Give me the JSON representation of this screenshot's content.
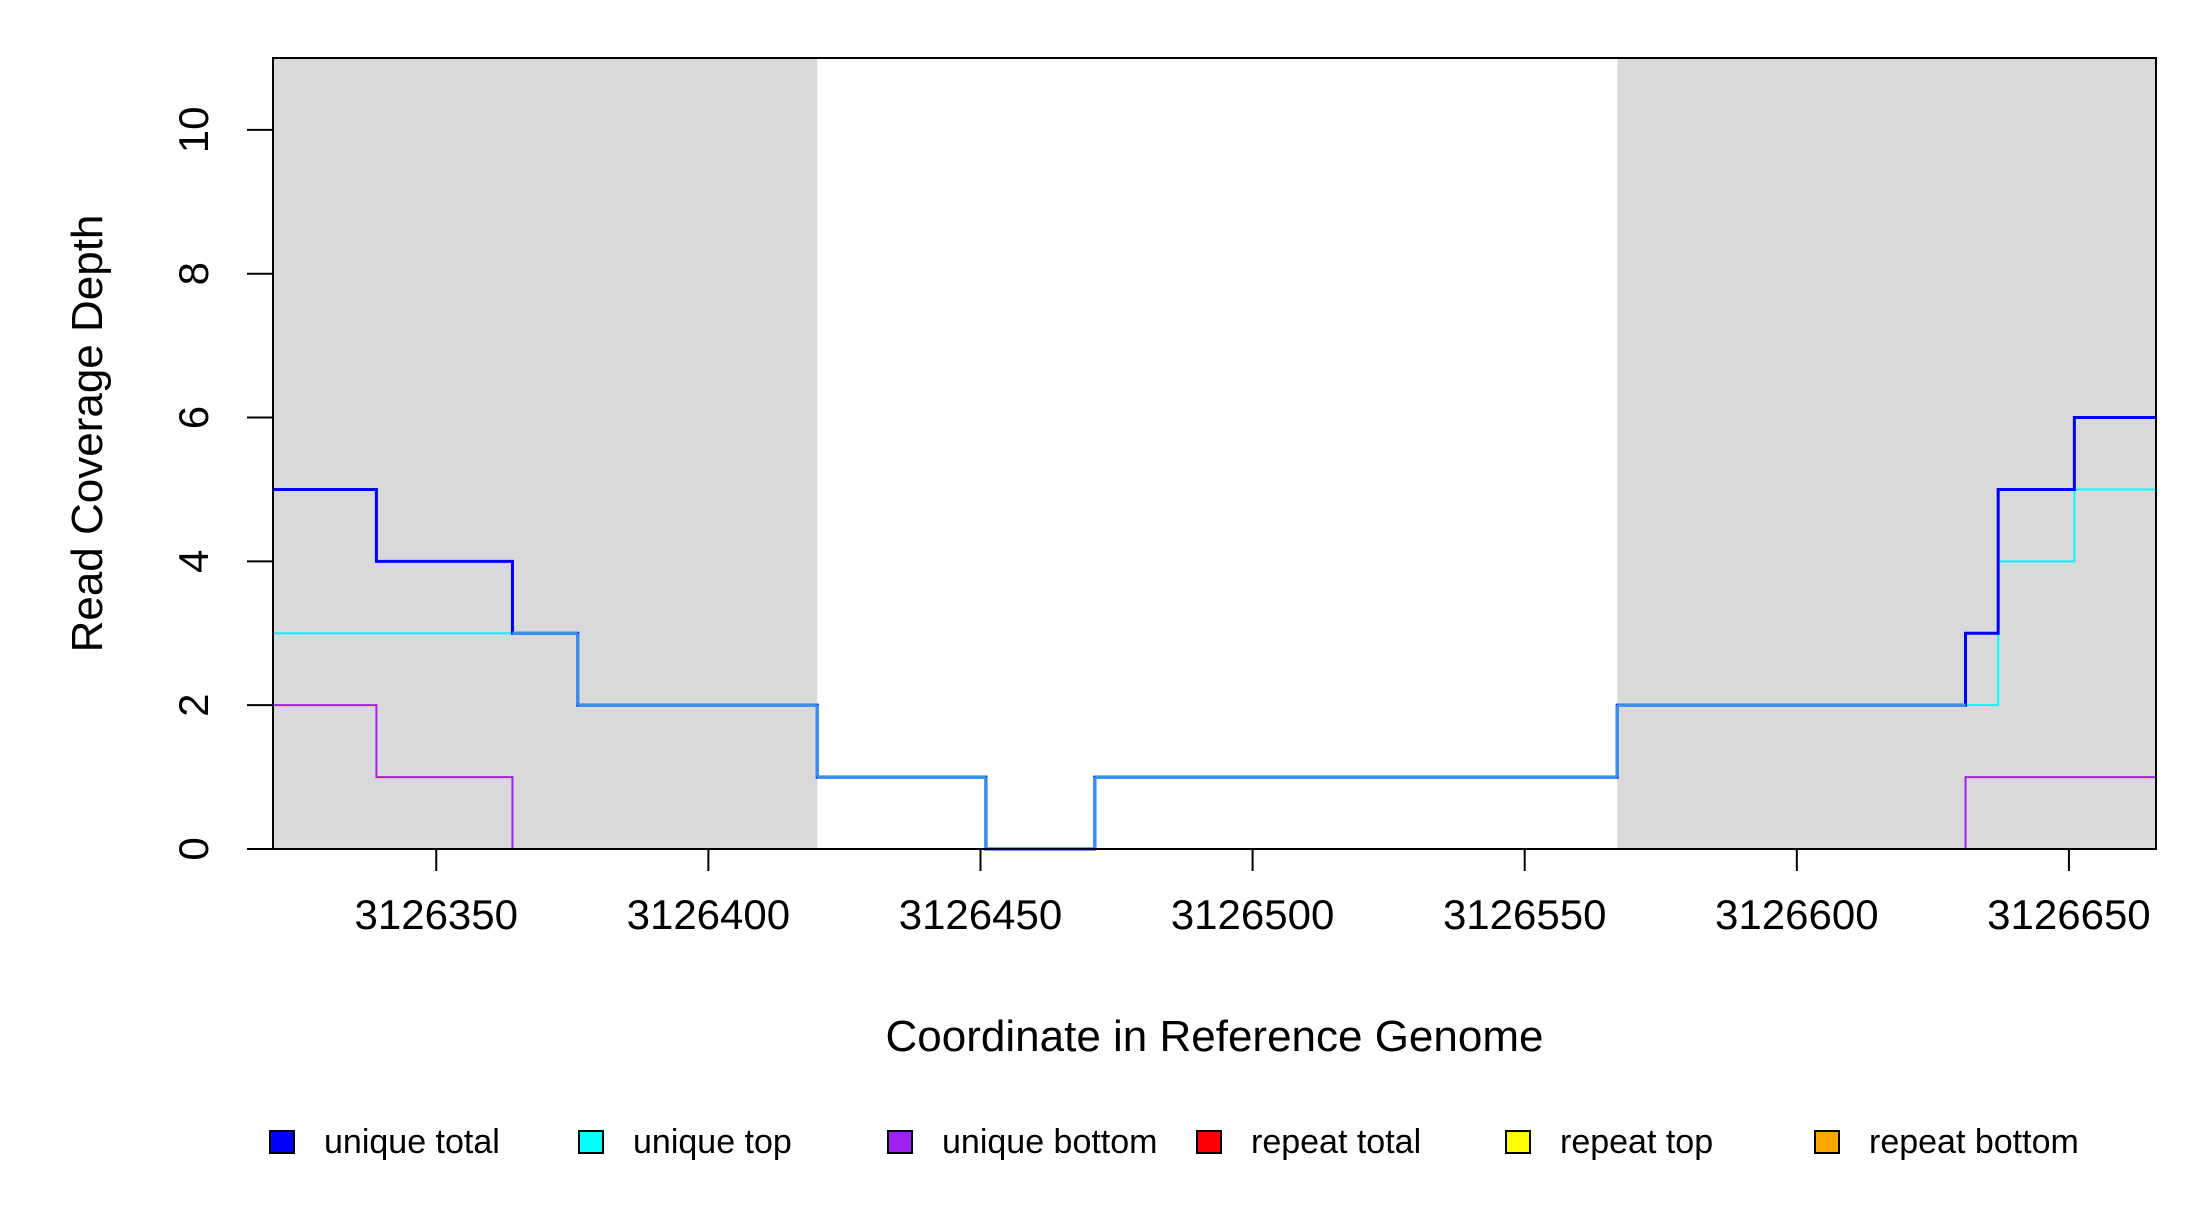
{
  "chart_data": {
    "type": "line",
    "title": "",
    "xlabel": "Coordinate in Reference Genome",
    "ylabel": "Read Coverage Depth",
    "xlim": [
      3126320,
      3126666
    ],
    "ylim": [
      0,
      11
    ],
    "x_ticks": [
      3126350,
      3126400,
      3126450,
      3126500,
      3126550,
      3126600,
      3126650
    ],
    "y_ticks": [
      0,
      2,
      4,
      6,
      8,
      10
    ],
    "x_tick_labels": [
      "3126350",
      "3126400",
      "3126450",
      "3126500",
      "3126550",
      "3126600",
      "3126650"
    ],
    "y_tick_labels": [
      "0",
      "2",
      "4",
      "6",
      "8",
      "10"
    ],
    "shaded_regions": [
      [
        3126320,
        3126420
      ],
      [
        3126567,
        3126666
      ]
    ],
    "shade_color": "#d9d9d9",
    "step_style": "steps-post",
    "grid": false,
    "legend_position": "bottom",
    "series": [
      {
        "name": "unique total",
        "color": "#0000ff",
        "x": [
          3126320,
          3126339,
          3126364,
          3126376,
          3126420,
          3126451,
          3126471,
          3126567,
          3126631,
          3126637,
          3126651,
          3126666
        ],
        "values": [
          5,
          4,
          3,
          2,
          1,
          0,
          1,
          2,
          3,
          5,
          6,
          6
        ]
      },
      {
        "name": "unique top",
        "color": "#00ffff",
        "x": [
          3126320,
          3126376,
          3126420,
          3126451,
          3126471,
          3126567,
          3126637,
          3126651,
          3126666
        ],
        "values": [
          3,
          2,
          1,
          0,
          1,
          2,
          4,
          5,
          5
        ]
      },
      {
        "name": "unique bottom",
        "color": "#a020f0",
        "x": [
          3126320,
          3126339,
          3126364,
          3126631,
          3126666
        ],
        "values": [
          2,
          1,
          0,
          1,
          1
        ]
      },
      {
        "name": "repeat total",
        "color": "#ff0000",
        "x": [
          3126320,
          3126666
        ],
        "values": [
          0,
          0
        ]
      },
      {
        "name": "repeat top",
        "color": "#ffff00",
        "x": [
          3126320,
          3126666
        ],
        "values": [
          0,
          0
        ]
      },
      {
        "name": "repeat bottom",
        "color": "#ffa500",
        "x": [
          3126320,
          3126666
        ],
        "values": [
          0,
          0
        ]
      }
    ]
  }
}
